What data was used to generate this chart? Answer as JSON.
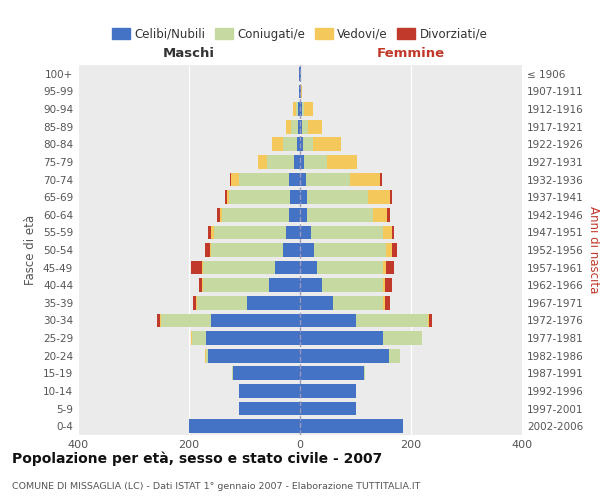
{
  "age_groups": [
    "0-4",
    "5-9",
    "10-14",
    "15-19",
    "20-24",
    "25-29",
    "30-34",
    "35-39",
    "40-44",
    "45-49",
    "50-54",
    "55-59",
    "60-64",
    "65-69",
    "70-74",
    "75-79",
    "80-84",
    "85-89",
    "90-94",
    "95-99",
    "100+"
  ],
  "birth_years": [
    "2002-2006",
    "1997-2001",
    "1992-1996",
    "1987-1991",
    "1982-1986",
    "1977-1981",
    "1972-1976",
    "1967-1971",
    "1962-1966",
    "1957-1961",
    "1952-1956",
    "1947-1951",
    "1942-1946",
    "1937-1941",
    "1932-1936",
    "1927-1931",
    "1922-1926",
    "1917-1921",
    "1912-1916",
    "1907-1911",
    "≤ 1906"
  ],
  "colors": {
    "celibi": "#4472c4",
    "coniugati": "#c5d9a0",
    "vedovi": "#f5c85c",
    "divorziati": "#c0392b"
  },
  "males": {
    "celibi": [
      200,
      110,
      110,
      120,
      165,
      170,
      160,
      95,
      55,
      45,
      30,
      25,
      20,
      18,
      20,
      10,
      5,
      4,
      3,
      1,
      1
    ],
    "coniugati": [
      0,
      0,
      0,
      2,
      5,
      25,
      90,
      90,
      120,
      130,
      130,
      130,
      120,
      110,
      90,
      50,
      25,
      12,
      5,
      1,
      0
    ],
    "vedovi": [
      0,
      0,
      0,
      0,
      2,
      2,
      2,
      2,
      2,
      2,
      3,
      5,
      5,
      4,
      15,
      15,
      20,
      10,
      5,
      0,
      0
    ],
    "divorziati": [
      0,
      0,
      0,
      0,
      0,
      0,
      5,
      5,
      5,
      20,
      8,
      5,
      5,
      4,
      2,
      0,
      0,
      0,
      0,
      0,
      0
    ]
  },
  "females": {
    "nubili": [
      185,
      100,
      100,
      115,
      160,
      150,
      100,
      60,
      40,
      30,
      25,
      20,
      12,
      12,
      10,
      8,
      5,
      4,
      3,
      1,
      1
    ],
    "coniugate": [
      0,
      0,
      0,
      2,
      20,
      70,
      130,
      90,
      110,
      120,
      130,
      130,
      120,
      110,
      80,
      40,
      18,
      10,
      5,
      1,
      0
    ],
    "vedove": [
      0,
      0,
      0,
      0,
      0,
      0,
      2,
      3,
      3,
      5,
      10,
      15,
      25,
      40,
      55,
      55,
      50,
      25,
      15,
      2,
      0
    ],
    "divorziate": [
      0,
      0,
      0,
      0,
      0,
      0,
      5,
      10,
      12,
      15,
      10,
      5,
      5,
      3,
      2,
      0,
      0,
      0,
      0,
      0,
      0
    ]
  },
  "title": "Popolazione per età, sesso e stato civile - 2007",
  "subtitle": "COMUNE DI MISSAGLIA (LC) - Dati ISTAT 1° gennaio 2007 - Elaborazione TUTTITALIA.IT",
  "xlabel_left": "Maschi",
  "xlabel_right": "Femmine",
  "ylabel_left": "Fasce di età",
  "ylabel_right": "Anni di nascita",
  "xlim": 400,
  "legend_labels": [
    "Celibi/Nubili",
    "Coniugati/e",
    "Vedovi/e",
    "Divorziati/e"
  ],
  "bg_color": "#ffffff",
  "plot_bg_color": "#ebebeb",
  "grid_color": "#ffffff"
}
